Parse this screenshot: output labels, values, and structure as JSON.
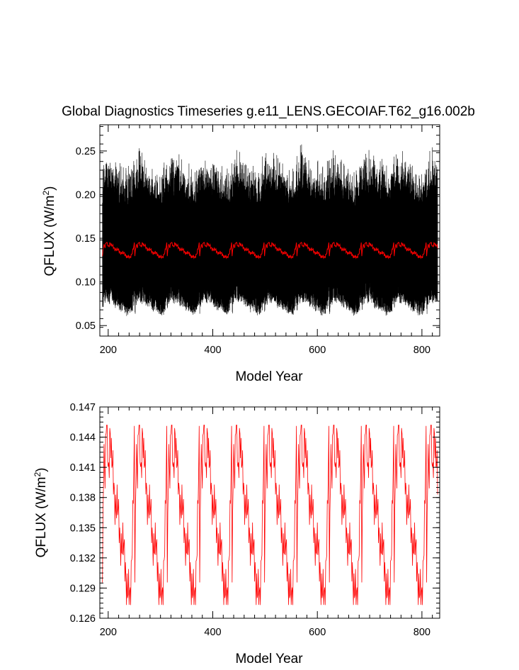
{
  "title": "Global Diagnostics Timeseries g.e11_LENS.GECOIAF.T62_g16.002b",
  "colors": {
    "monthly": "#000000",
    "annual": "#ff0000",
    "frame": "#000000"
  },
  "chart_data": [
    {
      "type": "line",
      "xlabel": "Model Year",
      "ylabel": "QFLUX (W/m",
      "ylabel_sup": "2",
      "ylabel_tail": ")",
      "xlim": [
        184,
        834
      ],
      "ylim": [
        0.038,
        0.28
      ],
      "xticks": [
        200,
        400,
        600,
        800
      ],
      "xtick_labels": [
        "200",
        "400",
        "600",
        "800"
      ],
      "yticks": [
        0.05,
        0.1,
        0.15,
        0.2,
        0.25
      ],
      "ytick_labels": [
        "0.05",
        "0.10",
        "0.15",
        "0.20",
        "0.25"
      ],
      "series": [
        {
          "kind": "monthly",
          "color": "#000000",
          "x_range": [
            189,
            830
          ],
          "cycle_years": 62,
          "cycle_start": 189,
          "min_range": [
            0.052,
            0.08
          ],
          "max_range": [
            0.19,
            0.265
          ]
        },
        {
          "kind": "annual",
          "color": "#ff0000",
          "x_range": [
            189,
            830
          ],
          "cycle_years": 62,
          "cycle_start": 189,
          "value_range": [
            0.1268,
            0.1452
          ]
        }
      ]
    },
    {
      "type": "line",
      "xlabel": "Model Year",
      "ylabel": "QFLUX (W/m",
      "ylabel_sup": "2",
      "ylabel_tail": ")",
      "xlim": [
        184,
        834
      ],
      "ylim": [
        0.126,
        0.147
      ],
      "xticks": [
        200,
        400,
        600,
        800
      ],
      "xtick_labels": [
        "200",
        "400",
        "600",
        "800"
      ],
      "yticks": [
        0.126,
        0.129,
        0.132,
        0.135,
        0.138,
        0.141,
        0.144,
        0.147
      ],
      "ytick_labels": [
        "0.126",
        "0.129",
        "0.132",
        "0.135",
        "0.138",
        "0.141",
        "0.144",
        "0.147"
      ],
      "series": [
        {
          "kind": "annual",
          "color": "#ff0000",
          "x_range": [
            189,
            830
          ],
          "cycle_years": 62,
          "cycle_start": 189,
          "value_range": [
            0.1268,
            0.1452
          ]
        }
      ]
    }
  ]
}
